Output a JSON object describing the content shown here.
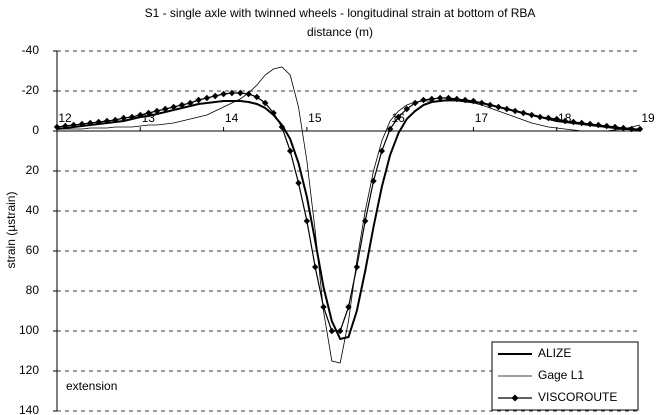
{
  "chart_data": {
    "type": "line",
    "title": "S1 - single axle with twinned wheels -  longitudinal strain at bottom of RBA",
    "x_label": "distance (m)",
    "y_label": "strain (µstrain)",
    "annotation": "extension",
    "x": [
      12.0,
      12.1,
      12.2,
      12.3,
      12.4,
      12.5,
      12.6,
      12.7,
      12.8,
      12.9,
      13.0,
      13.1,
      13.2,
      13.3,
      13.4,
      13.5,
      13.6,
      13.7,
      13.8,
      13.9,
      14.0,
      14.1,
      14.2,
      14.3,
      14.4,
      14.5,
      14.6,
      14.7,
      14.8,
      14.9,
      15.0,
      15.1,
      15.2,
      15.3,
      15.4,
      15.5,
      15.6,
      15.7,
      15.8,
      15.9,
      16.0,
      16.1,
      16.2,
      16.3,
      16.4,
      16.5,
      16.6,
      16.7,
      16.8,
      16.9,
      17.0,
      17.1,
      17.2,
      17.3,
      17.4,
      17.5,
      17.6,
      17.7,
      17.8,
      17.9,
      18.0,
      18.1,
      18.2,
      18.3,
      18.4,
      18.5,
      18.6,
      18.7,
      18.8,
      18.9,
      19.0
    ],
    "series": [
      {
        "name": "ALIZE",
        "color": "#000000",
        "values": [
          -1,
          -1.5,
          -2,
          -2.5,
          -3,
          -3.5,
          -4,
          -4.5,
          -5,
          -6,
          -7,
          -7.5,
          -8.5,
          -9.5,
          -10.5,
          -11.5,
          -12.5,
          -13.5,
          -14,
          -14.5,
          -15,
          -15,
          -15,
          -14.5,
          -13.5,
          -11.5,
          -8,
          -3,
          4,
          16,
          33,
          55,
          78,
          95,
          104,
          103,
          90,
          70,
          48,
          28,
          12,
          1,
          -6,
          -10,
          -13,
          -14.5,
          -15,
          -15.5,
          -15.5,
          -15,
          -14.5,
          -14,
          -13,
          -12,
          -11,
          -10,
          -9,
          -8,
          -7,
          -6,
          -5,
          -4.5,
          -4,
          -3.5,
          -3,
          -2.5,
          -2,
          -1.5,
          -1,
          -1,
          -0.5
        ]
      },
      {
        "name": "Gage L1",
        "color": "#000000",
        "values": [
          -1,
          -1,
          -1,
          -1,
          -1.5,
          -1.5,
          -1.5,
          -2,
          -2,
          -2,
          -2.5,
          -3,
          -3,
          -3.5,
          -4,
          -5,
          -6,
          -7,
          -8,
          -10,
          -12,
          -14,
          -16,
          -19,
          -23,
          -28,
          -31,
          -32,
          -28,
          -12,
          15,
          50,
          90,
          115,
          116,
          95,
          65,
          40,
          20,
          5,
          -5,
          -10,
          -13,
          -14.5,
          -15,
          -15,
          -15,
          -15,
          -15,
          -14.5,
          -14,
          -13,
          -11.5,
          -10,
          -8.5,
          -7,
          -5.5,
          -4,
          -3,
          -2,
          -1.5,
          -1,
          -0.5,
          0,
          0,
          0,
          0,
          -0.5,
          -1,
          -2,
          -3
        ]
      },
      {
        "name": "VISCOROUTE",
        "color": "#000000",
        "values": [
          -2,
          -2.5,
          -3,
          -3.5,
          -4,
          -4.5,
          -5,
          -5.5,
          -6.5,
          -7,
          -8,
          -9,
          -10,
          -11,
          -12,
          -13,
          -14,
          -15.5,
          -16.5,
          -17.5,
          -18.5,
          -19,
          -19,
          -18.5,
          -17,
          -14,
          -9,
          -2,
          10,
          26,
          45,
          68,
          88,
          100,
          100,
          88,
          68,
          45,
          25,
          10,
          -1,
          -7,
          -11,
          -14,
          -15.5,
          -16,
          -16.5,
          -16.5,
          -16,
          -15.5,
          -15,
          -14,
          -13,
          -12,
          -11,
          -10,
          -9,
          -8,
          -7,
          -6.5,
          -6,
          -5,
          -4.5,
          -4,
          -3.5,
          -3,
          -2.5,
          -2,
          -1.5,
          -1,
          -1
        ]
      }
    ],
    "xlim": [
      12,
      19
    ],
    "xticks": [
      12,
      13,
      14,
      15,
      16,
      17,
      18,
      19
    ],
    "ylim": [
      140,
      -40
    ],
    "yticks": [
      -40,
      -20,
      0,
      20,
      40,
      60,
      80,
      100,
      120,
      140
    ],
    "grid": true,
    "legend": "lower right"
  }
}
